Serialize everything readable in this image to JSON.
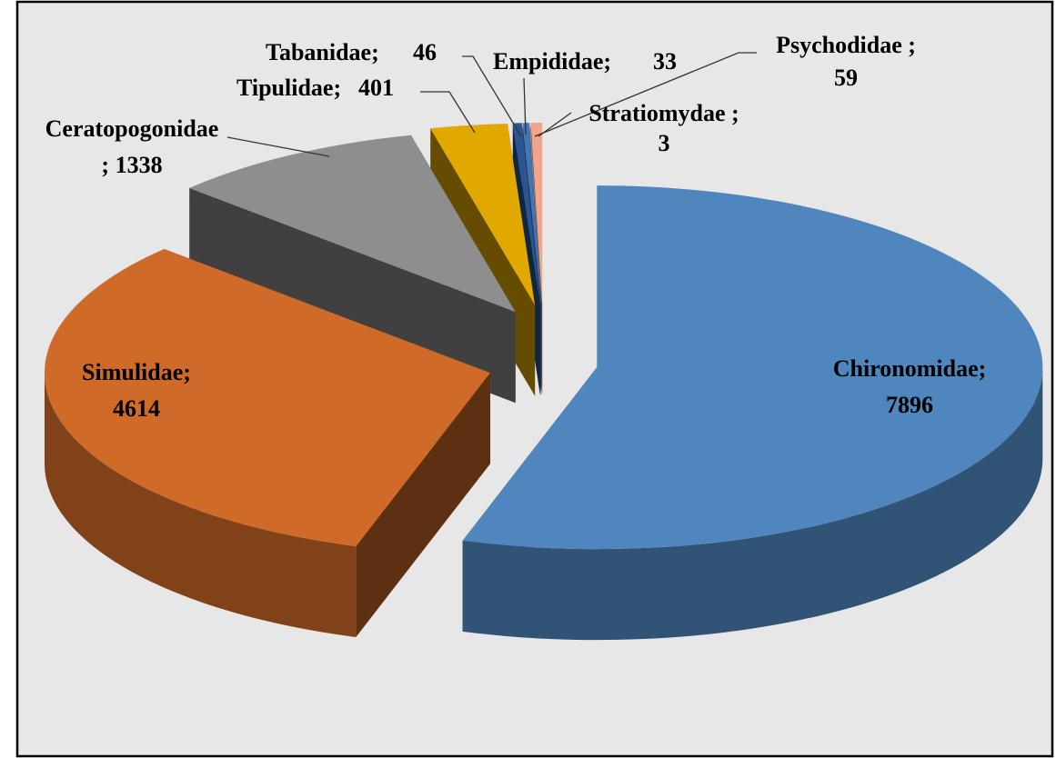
{
  "chart_data": {
    "type": "pie",
    "categories": [
      "Chironomidae;",
      "Simulidae;",
      "Ceratopogonidae",
      "Tipulidae;",
      "Tabanidae;",
      "Empididae;",
      "Stratiomydae ;",
      "Psychodidae ;"
    ],
    "values": [
      7896,
      4614,
      1338,
      401,
      46,
      33,
      3,
      59
    ],
    "value_labels": [
      "7896",
      "4614",
      "; 1338",
      "401",
      "46",
      "33",
      "3",
      "59"
    ],
    "colors": [
      "#4f86be",
      "#d06a28",
      "#8e8e8e",
      "#e1a900",
      "#2a5590",
      "#4474b4",
      "#a9b4c4",
      "#f2a58c"
    ]
  }
}
